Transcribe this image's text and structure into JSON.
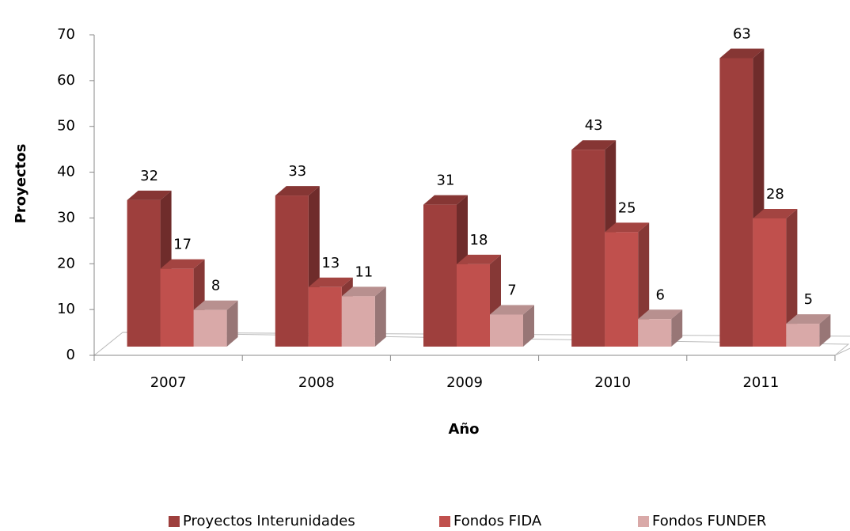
{
  "chart_data": {
    "type": "bar3d",
    "x_label": "Año",
    "y_label": "Proyectos",
    "categories": [
      "2007",
      "2008",
      "2009",
      "2010",
      "2011"
    ],
    "series": [
      {
        "name": "Proyectos Interunidades",
        "color": "#9e3f3d",
        "values": [
          32,
          33,
          31,
          43,
          63
        ]
      },
      {
        "name": "Fondos FIDA",
        "color": "#c0504d",
        "values": [
          17,
          13,
          18,
          25,
          28
        ]
      },
      {
        "name": "Fondos FUNDER",
        "color": "#d9a9a8",
        "values": [
          8,
          11,
          7,
          6,
          5
        ]
      }
    ],
    "ylim": [
      0,
      70
    ],
    "yticks": [
      0,
      10,
      20,
      30,
      40,
      50,
      60,
      70
    ],
    "legend": "bottom"
  }
}
